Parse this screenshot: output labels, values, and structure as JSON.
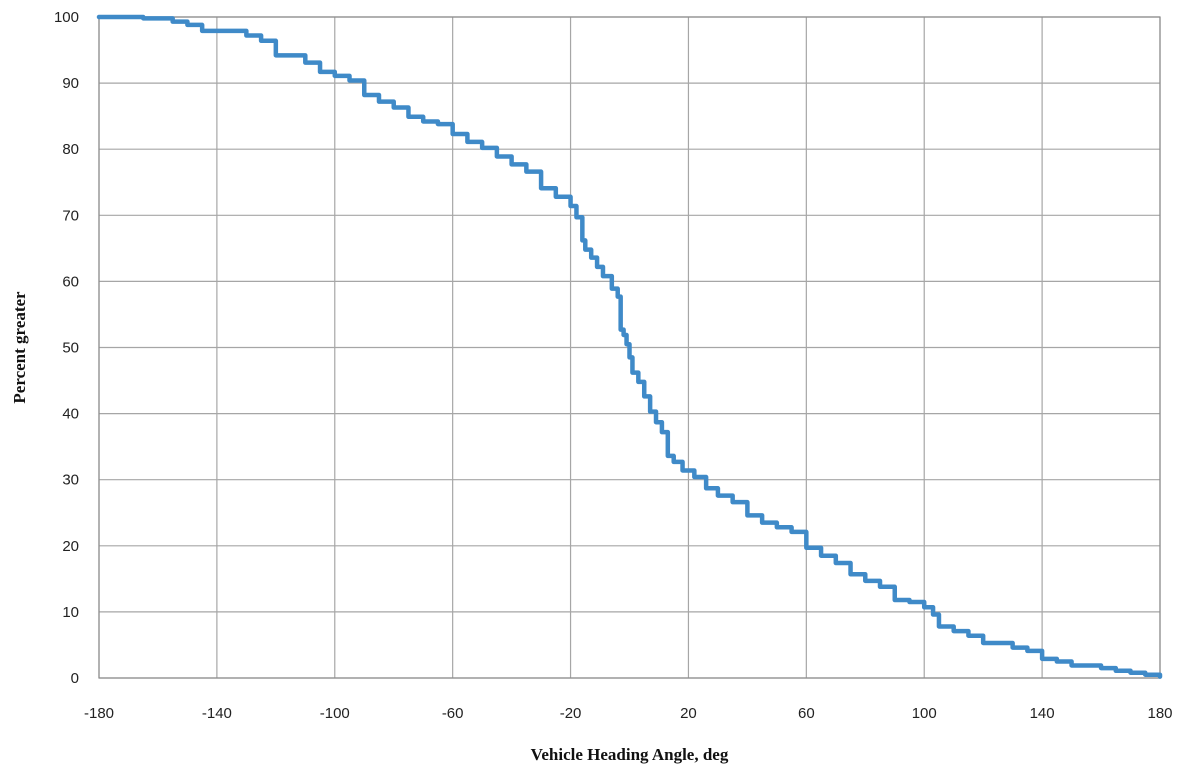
{
  "chart_data": {
    "type": "line",
    "title": "",
    "xlabel": "Vehicle Heading Angle, deg",
    "ylabel": "Percent greater",
    "xlim": [
      -180,
      180
    ],
    "ylim": [
      0,
      100
    ],
    "xticks": [
      -180,
      -140,
      -100,
      -60,
      -20,
      20,
      60,
      100,
      140,
      180
    ],
    "yticks": [
      0,
      10,
      20,
      30,
      40,
      50,
      60,
      70,
      80,
      90,
      100
    ],
    "grid": true,
    "colors": {
      "series": "#3f8ac8",
      "grid": "#a6a6a6"
    },
    "series": [
      {
        "step": true,
        "x": [
          -180,
          -165,
          -155,
          -150,
          -145,
          -130,
          -125,
          -120,
          -110,
          -105,
          -100,
          -95,
          -90,
          -85,
          -80,
          -75,
          -70,
          -65,
          -60,
          -55,
          -50,
          -45,
          -40,
          -35,
          -30,
          -25,
          -20,
          -18,
          -16,
          -15,
          -13,
          -11,
          -9,
          -6,
          -4,
          -3,
          -2,
          -1,
          0,
          1,
          3,
          5,
          7,
          9,
          11,
          13,
          15,
          18,
          22,
          26,
          30,
          35,
          40,
          45,
          50,
          55,
          60,
          65,
          70,
          75,
          80,
          85,
          90,
          95,
          100,
          103,
          105,
          110,
          115,
          120,
          130,
          135,
          140,
          145,
          150,
          160,
          165,
          170,
          175,
          180
        ],
        "y": [
          100,
          99.8,
          99.3,
          98.8,
          97.9,
          97.2,
          96.4,
          94.2,
          93.1,
          91.7,
          91.1,
          90.4,
          88.2,
          87.2,
          86.3,
          84.9,
          84.2,
          83.8,
          82.3,
          81.1,
          80.2,
          78.9,
          77.7,
          76.6,
          74.1,
          72.8,
          71.4,
          69.7,
          66.2,
          64.8,
          63.6,
          62.2,
          60.8,
          58.9,
          57.7,
          52.7,
          51.9,
          50.5,
          48.5,
          46.2,
          44.8,
          42.6,
          40.3,
          38.7,
          37.2,
          33.6,
          32.7,
          31.4,
          30.4,
          28.7,
          27.6,
          26.6,
          24.6,
          23.5,
          22.8,
          22.1,
          19.7,
          18.5,
          17.4,
          15.7,
          14.7,
          13.8,
          11.8,
          11.5,
          10.7,
          9.6,
          7.8,
          7.1,
          6.4,
          5.3,
          4.6,
          4.1,
          2.9,
          2.5,
          1.9,
          1.5,
          1.1,
          0.8,
          0.5,
          0.2
        ]
      }
    ]
  }
}
